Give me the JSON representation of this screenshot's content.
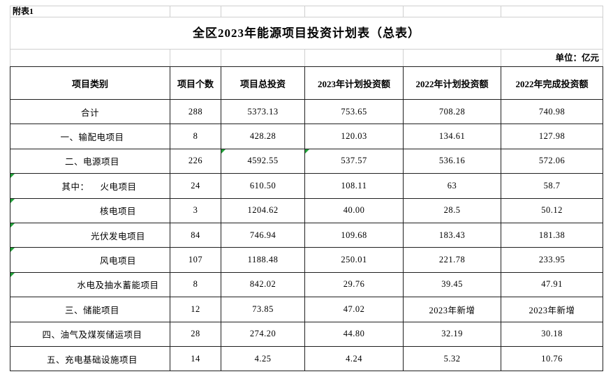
{
  "sheet": {
    "annex_label": "附表1",
    "title": "全区2023年能源项目投资计划表（总表）",
    "unit_label": "单位：亿元",
    "colors": {
      "error_indicator_green": "#21a038",
      "grid_line_gray": "#cfcfcf",
      "table_border": "#1f1f1f"
    }
  },
  "table": {
    "columns": [
      "项目类别",
      "项目个数",
      "项目总投资",
      "2023年计划投资额",
      "2022年计划投资额",
      "2022年完成投资额"
    ],
    "column_keys": [
      "category",
      "count",
      "total-investment",
      "plan-2023",
      "plan-2022",
      "done-2022"
    ],
    "rows": [
      {
        "category": "合计",
        "style": "center",
        "values": [
          "288",
          "5373.13",
          "753.65",
          "708.28",
          "740.98"
        ],
        "marks": []
      },
      {
        "category": "一、输配电项目",
        "style": "left",
        "values": [
          "8",
          "428.28",
          "120.03",
          "134.61",
          "127.98"
        ],
        "marks": []
      },
      {
        "category": "二、电源项目",
        "style": "left",
        "values": [
          "226",
          "4592.55",
          "537.57",
          "536.16",
          "572.06"
        ],
        "marks": [
          2,
          3
        ]
      },
      {
        "category": "火电项目",
        "prefix": "其中：",
        "style": "among",
        "values": [
          "24",
          "610.50",
          "108.11",
          "63",
          "58.7"
        ],
        "marks": [
          0
        ]
      },
      {
        "category": "核电项目",
        "style": "sub",
        "values": [
          "3",
          "1204.62",
          "40.00",
          "28.5",
          "50.12"
        ],
        "marks": [
          0
        ]
      },
      {
        "category": "光伏发电项目",
        "style": "sub",
        "values": [
          "84",
          "746.94",
          "109.68",
          "183.43",
          "181.38"
        ],
        "marks": [
          0
        ]
      },
      {
        "category": "风电项目",
        "style": "sub",
        "values": [
          "107",
          "1188.48",
          "250.01",
          "221.78",
          "233.95"
        ],
        "marks": [
          0
        ]
      },
      {
        "category": "水电及抽水蓄能项目",
        "style": "sub",
        "values": [
          "8",
          "842.02",
          "29.76",
          "39.45",
          "47.91"
        ],
        "marks": [
          0
        ]
      },
      {
        "category": "三、储能项目",
        "style": "left",
        "values": [
          "12",
          "73.85",
          "47.02",
          "2023年新增",
          "2023年新增"
        ],
        "marks": []
      },
      {
        "category": "四、油气及煤炭储运项目",
        "style": "left",
        "values": [
          "28",
          "274.20",
          "44.80",
          "32.19",
          "30.18"
        ],
        "marks": []
      },
      {
        "category": "五、充电基础设施项目",
        "style": "left",
        "values": [
          "14",
          "4.25",
          "4.24",
          "5.32",
          "10.76"
        ],
        "marks": []
      }
    ]
  }
}
